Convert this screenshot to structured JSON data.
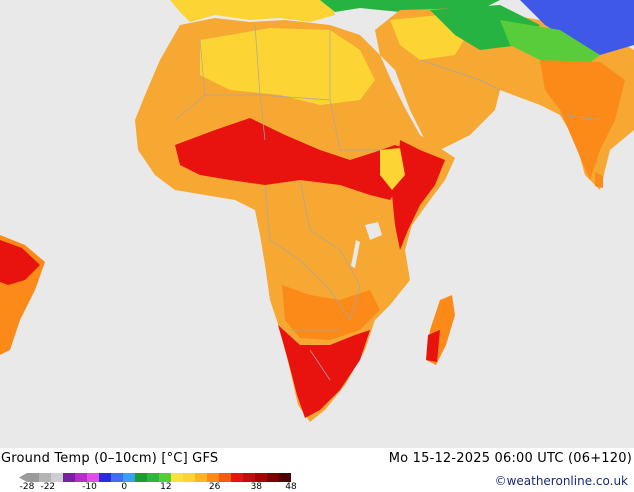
{
  "map": {
    "ocean_color": "#e9e9e9",
    "land_base_color": "#f6a833",
    "hot_color": "#e8130f",
    "warm_color": "#fb8a18",
    "mild_color": "#fcd434",
    "cool_green": "#27b341",
    "cold_blue": "#3f58e8",
    "border_color": "#a6a6a6"
  },
  "footer": {
    "title": "Ground Temp (0–10cm) [°C] GFS",
    "valid_time": "Mo 15-12-2025 06:00 UTC (06+120)",
    "credit": "©weatheronline.co.uk"
  },
  "legend": {
    "ticks": [
      {
        "label": "-28",
        "value": -28
      },
      {
        "label": "-22",
        "value": -22
      },
      {
        "label": "-10",
        "value": -10
      },
      {
        "label": "0",
        "value": 0
      },
      {
        "label": "12",
        "value": 12
      },
      {
        "label": "26",
        "value": 26
      },
      {
        "label": "38",
        "value": 38
      },
      {
        "label": "48",
        "value": 48
      }
    ],
    "colors": [
      "#9a9a9a",
      "#b5b5b5",
      "#cfcfcf",
      "#7a1fa0",
      "#b62fc4",
      "#e04fe4",
      "#2b2bd8",
      "#3f6ef0",
      "#3ca0f0",
      "#1e9a2e",
      "#2fb43c",
      "#58cc3a",
      "#f6e43a",
      "#fcd434",
      "#fbb42a",
      "#fb8a18",
      "#f55a10",
      "#e8130f",
      "#c40c0c",
      "#a00808",
      "#7a0404",
      "#4a0202"
    ],
    "min": -28,
    "max": 48
  }
}
